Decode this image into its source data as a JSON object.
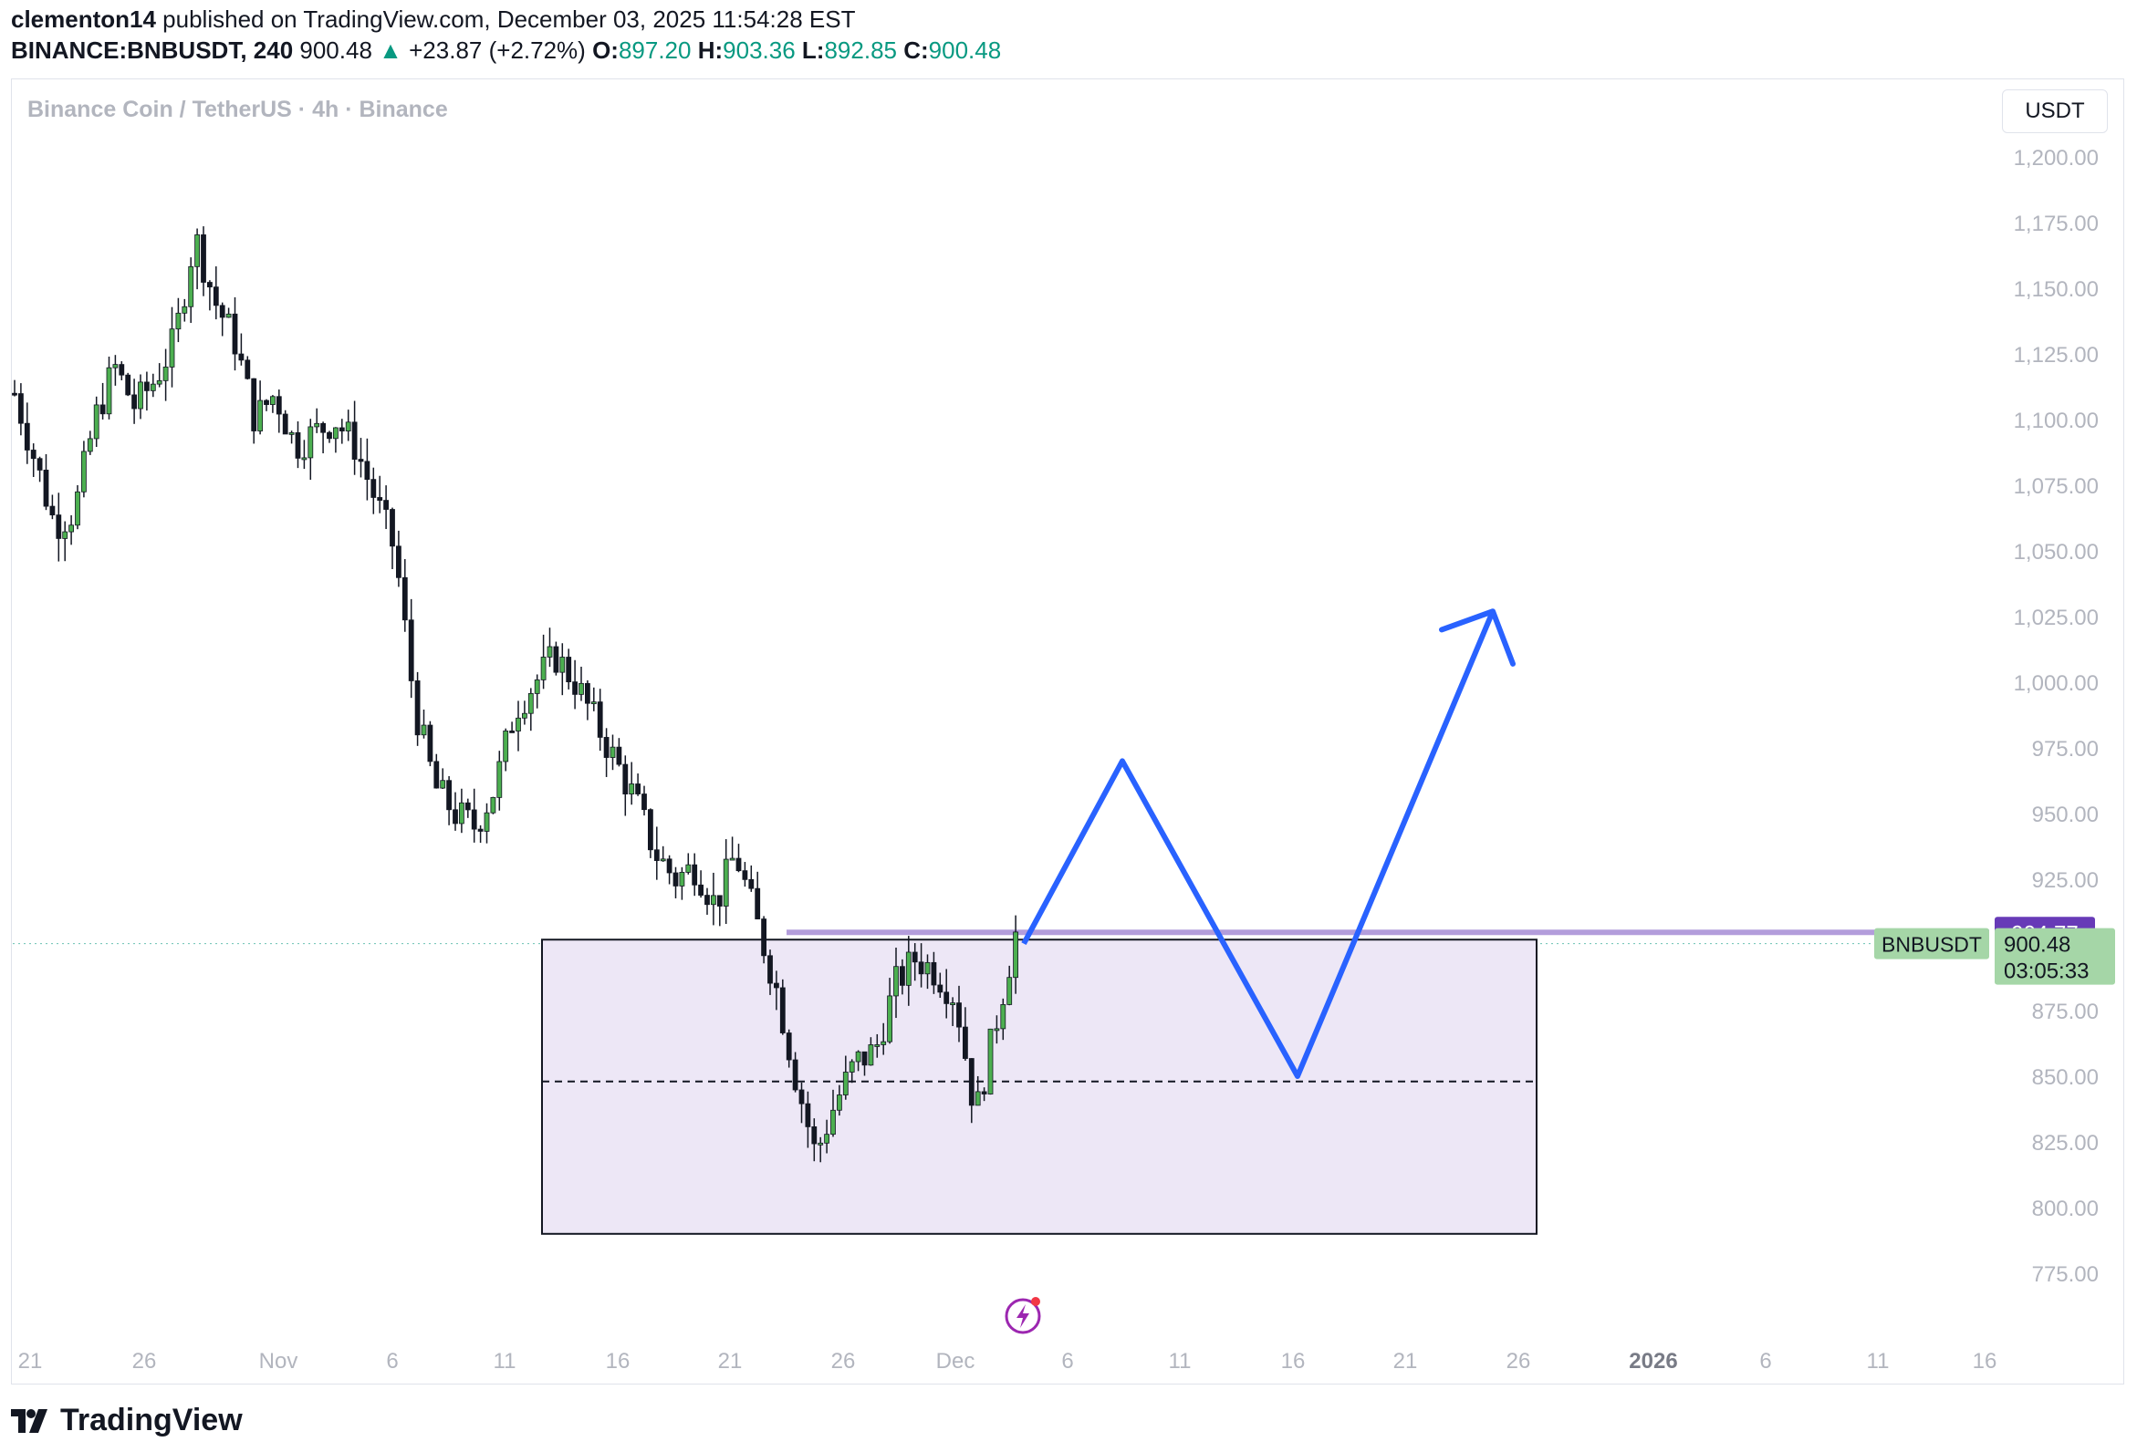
{
  "header": {
    "publisher": "clementon14",
    "published_text": " published on TradingView.com, December 03, 2025 11:54:28 EST",
    "symbol": "BINANCE:BNBUSDT, 240",
    "last": "900.48",
    "change": "+23.87 (+2.72%)",
    "o_label": "O:",
    "o": "897.20",
    "h_label": "H:",
    "h": "903.36",
    "l_label": "L:",
    "l": "892.85",
    "c_label": "C:",
    "c": "900.48"
  },
  "pair_title": "Binance Coin / TetherUS · 4h · Binance",
  "currency_button": "USDT",
  "brand": "TradingView",
  "colors": {
    "up": "#089981",
    "down": "#131722",
    "candle_up_body": "#4caf50",
    "box_fill": "#ede7f6",
    "arrow": "#2962ff",
    "resistance": "#b39ddb",
    "badge_purple": "#673ab7",
    "badge_green": "#a5d6a7"
  },
  "chart_data": {
    "type": "candlestick",
    "interval": "4h",
    "symbol": "BNBUSDT",
    "y_axis": {
      "ticks": [
        "1,200.00",
        "1,175.00",
        "1,150.00",
        "1,125.00",
        "1,100.00",
        "1,075.00",
        "1,050.00",
        "1,025.00",
        "1,000.00",
        "975.00",
        "950.00",
        "925.00",
        "875.00",
        "850.00",
        "825.00",
        "800.00",
        "775.00"
      ],
      "ylim": [
        760,
        1215
      ]
    },
    "x_axis": {
      "ticks": [
        "21",
        "26",
        "Nov",
        "6",
        "11",
        "16",
        "21",
        "26",
        "Dec",
        "6",
        "11",
        "16",
        "21",
        "26",
        "2026",
        "6",
        "11",
        "16"
      ],
      "bold_ticks": [
        "2026"
      ]
    },
    "price_path": [
      [
        0,
        1110
      ],
      [
        2,
        1085
      ],
      [
        4,
        1060
      ],
      [
        6,
        1065
      ],
      [
        8,
        1100
      ],
      [
        10,
        1120
      ],
      [
        12,
        1105
      ],
      [
        14,
        1115
      ],
      [
        16,
        1130
      ],
      [
        18,
        1170
      ],
      [
        20,
        1145
      ],
      [
        22,
        1130
      ],
      [
        24,
        1100
      ],
      [
        26,
        1110
      ],
      [
        28,
        1090
      ],
      [
        30,
        1095
      ],
      [
        32,
        1100
      ],
      [
        34,
        1090
      ],
      [
        36,
        1070
      ],
      [
        38,
        1050
      ],
      [
        40,
        990
      ],
      [
        42,
        960
      ],
      [
        44,
        950
      ],
      [
        46,
        945
      ],
      [
        48,
        960
      ],
      [
        50,
        990
      ],
      [
        52,
        1000
      ],
      [
        54,
        1010
      ],
      [
        56,
        1000
      ],
      [
        58,
        985
      ],
      [
        60,
        970
      ],
      [
        62,
        955
      ],
      [
        64,
        935
      ],
      [
        66,
        925
      ],
      [
        68,
        930
      ],
      [
        70,
        915
      ],
      [
        72,
        935
      ],
      [
        74,
        910
      ],
      [
        76,
        885
      ],
      [
        78,
        850
      ],
      [
        80,
        820
      ],
      [
        82,
        840
      ],
      [
        84,
        855
      ],
      [
        86,
        860
      ],
      [
        88,
        885
      ],
      [
        90,
        895
      ],
      [
        92,
        890
      ],
      [
        94,
        880
      ],
      [
        96,
        835
      ],
      [
        98,
        870
      ],
      [
        100,
        904
      ]
    ],
    "candles_approx": 160,
    "rectangle": {
      "top": 902,
      "bottom": 790,
      "midline": 848
    },
    "resistance": 904.77,
    "projection": [
      [
        904,
        900.48
      ],
      [
        935,
        970
      ],
      [
        980,
        850
      ],
      [
        1025,
        1027
      ]
    ],
    "labels": {
      "resistance_value": "904.77",
      "symbol_tag": "BNBUSDT",
      "last_price": "900.48",
      "countdown": "03:05:33"
    }
  }
}
